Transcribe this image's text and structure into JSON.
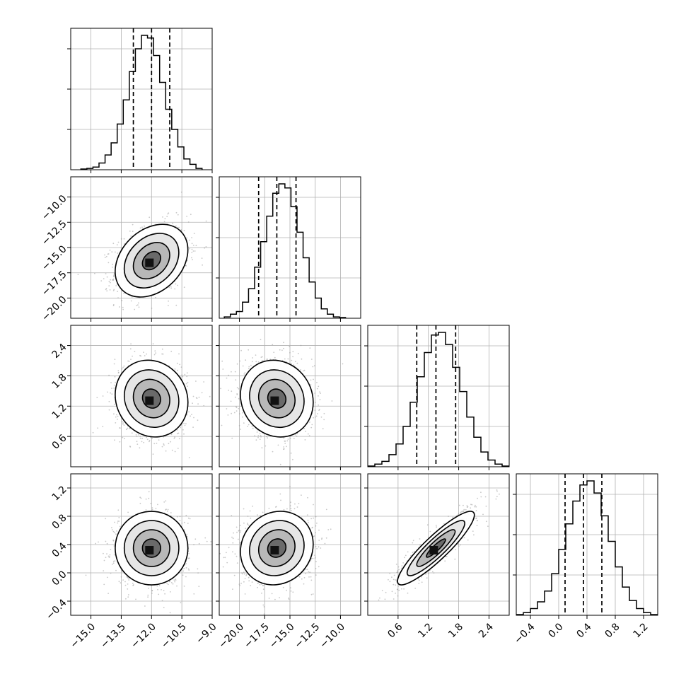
{
  "colors": {
    "background": "#ffffff",
    "frame": "#000000",
    "grid": "#b0b0b0",
    "scatter": "#9a9a9a",
    "hist": "#000000"
  },
  "chart_data": {
    "type": "corner",
    "grid": true,
    "params": [
      {
        "range": [
          -16.0,
          -9.0
        ],
        "ticks": [
          "−15.0",
          "−13.5",
          "−12.0",
          "−10.5",
          "−9.0"
        ],
        "tick_values": [
          -15.0,
          -13.5,
          -12.0,
          -10.5,
          -9.0
        ],
        "mean": -12.0,
        "sd": 0.9,
        "quantiles": [
          -12.9,
          -12.0,
          -11.1
        ]
      },
      {
        "range": [
          -22.0,
          -8.0
        ],
        "ticks": [
          "−20.0",
          "−17.5",
          "−15.0",
          "−12.5",
          "−10.0"
        ],
        "tick_values": [
          -20.0,
          -17.5,
          -15.0,
          -12.5,
          -10.0
        ],
        "mean": -16.3,
        "sd": 1.8,
        "quantiles": [
          -18.1,
          -16.3,
          -14.4
        ]
      },
      {
        "range": [
          0.0,
          2.8
        ],
        "ticks": [
          "0.6",
          "1.2",
          "1.8",
          "2.4"
        ],
        "tick_values": [
          0.6,
          1.2,
          1.8,
          2.4
        ],
        "mean": 1.35,
        "sd": 0.38,
        "quantiles": [
          0.97,
          1.35,
          1.74
        ]
      },
      {
        "range": [
          -0.6,
          1.4
        ],
        "ticks": [
          "−0.4",
          "0.0",
          "0.4",
          "0.8",
          "1.2"
        ],
        "tick_values": [
          -0.4,
          0.0,
          0.4,
          0.8,
          1.2
        ],
        "mean": 0.35,
        "sd": 0.26,
        "quantiles": [
          0.09,
          0.35,
          0.61
        ]
      }
    ],
    "correlations": [
      [
        1,
        0.3,
        -0.1,
        0.0
      ],
      [
        0.3,
        1,
        -0.1,
        0.1
      ],
      [
        -0.1,
        -0.1,
        1,
        0.9
      ],
      [
        0.0,
        0.1,
        0.9,
        1
      ]
    ],
    "histograms": [
      {
        "edges": [
          -15.5,
          -15.2,
          -14.9,
          -14.6,
          -14.3,
          -14.0,
          -13.7,
          -13.4,
          -13.1,
          -12.8,
          -12.5,
          -12.2,
          -11.9,
          -11.6,
          -11.3,
          -11.0,
          -10.7,
          -10.4,
          -10.1,
          -9.8,
          -9.5
        ],
        "counts": [
          0.5,
          1,
          2,
          5,
          11,
          20,
          34,
          52,
          73,
          90,
          100,
          98,
          85,
          65,
          45,
          30,
          17,
          8,
          4,
          1
        ]
      },
      {
        "edges": [
          -21.5,
          -20.9,
          -20.3,
          -19.7,
          -19.1,
          -18.5,
          -17.9,
          -17.3,
          -16.7,
          -16.1,
          -15.5,
          -14.9,
          -14.3,
          -13.7,
          -13.1,
          -12.5,
          -11.9,
          -11.3,
          -10.7,
          -10.1,
          -9.5
        ],
        "counts": [
          1,
          3,
          5,
          12,
          22,
          38,
          57,
          76,
          93,
          100,
          97,
          83,
          64,
          45,
          27,
          15,
          7,
          3,
          1,
          0.5
        ]
      },
      {
        "edges": [
          0.0,
          0.14,
          0.28,
          0.42,
          0.56,
          0.7,
          0.84,
          0.98,
          1.12,
          1.26,
          1.4,
          1.54,
          1.68,
          1.82,
          1.96,
          2.1,
          2.24,
          2.38,
          2.52,
          2.66,
          2.8
        ],
        "counts": [
          0.5,
          2,
          4,
          9,
          17,
          30,
          48,
          67,
          85,
          98,
          100,
          91,
          74,
          56,
          37,
          22,
          11,
          5,
          2,
          0.5
        ]
      },
      {
        "edges": [
          -0.6,
          -0.5,
          -0.4,
          -0.3,
          -0.2,
          -0.1,
          0.0,
          0.1,
          0.2,
          0.3,
          0.4,
          0.5,
          0.6,
          0.7,
          0.8,
          0.9,
          1.0,
          1.1,
          1.2,
          1.3,
          1.4
        ],
        "counts": [
          0.5,
          2,
          5,
          10,
          18,
          31,
          49,
          68,
          85,
          97,
          100,
          91,
          74,
          55,
          36,
          21,
          11,
          5,
          2,
          0.5
        ]
      }
    ]
  }
}
